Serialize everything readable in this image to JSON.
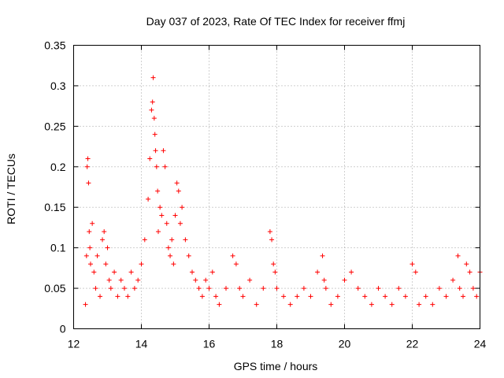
{
  "chart_data": {
    "type": "scatter",
    "title": "Day 037 of 2023, Rate Of TEC Index for receiver ffmj",
    "xlabel": "GPS time / hours",
    "ylabel": "ROTI / TECUs",
    "xlim": [
      12,
      24
    ],
    "ylim": [
      0,
      0.35
    ],
    "xticks": [
      12,
      14,
      16,
      18,
      20,
      22,
      24
    ],
    "xtick_labels": [
      "12",
      "14",
      "16",
      "18",
      "20",
      "22",
      "24"
    ],
    "yticks": [
      0,
      0.05,
      0.1,
      0.15,
      0.2,
      0.25,
      0.3,
      0.35
    ],
    "ytick_labels": [
      "0",
      "0.05",
      "0.1",
      "0.15",
      "0.2",
      "0.25",
      "0.3",
      "0.35"
    ],
    "grid": true,
    "marker": "+",
    "color": "#ff0000",
    "series": [
      {
        "name": "ROTI",
        "x": [
          12.35,
          12.38,
          12.4,
          12.42,
          12.44,
          12.46,
          12.48,
          12.5,
          12.55,
          12.6,
          12.65,
          12.7,
          12.78,
          12.85,
          12.9,
          12.95,
          13.0,
          13.05,
          13.1,
          13.2,
          13.3,
          13.4,
          13.5,
          13.6,
          13.7,
          13.8,
          13.9,
          14.0,
          14.1,
          14.2,
          14.25,
          14.3,
          14.33,
          14.35,
          14.38,
          14.4,
          14.42,
          14.45,
          14.48,
          14.5,
          14.55,
          14.6,
          14.65,
          14.7,
          14.75,
          14.8,
          14.85,
          14.9,
          14.95,
          15.0,
          15.05,
          15.1,
          15.15,
          15.2,
          15.3,
          15.4,
          15.5,
          15.6,
          15.7,
          15.8,
          15.9,
          16.0,
          16.1,
          16.2,
          16.3,
          16.5,
          16.7,
          16.8,
          16.9,
          17.0,
          17.2,
          17.4,
          17.6,
          17.8,
          17.85,
          17.9,
          17.95,
          18.0,
          18.2,
          18.4,
          18.6,
          18.8,
          19.0,
          19.2,
          19.35,
          19.4,
          19.45,
          19.6,
          19.8,
          20.0,
          20.2,
          20.4,
          20.6,
          20.8,
          21.0,
          21.2,
          21.4,
          21.6,
          21.8,
          22.0,
          22.1,
          22.2,
          22.4,
          22.6,
          22.8,
          23.0,
          23.2,
          23.35,
          23.4,
          23.5,
          23.6,
          23.7,
          23.8,
          23.9,
          24.0
        ],
        "y": [
          0.03,
          0.09,
          0.2,
          0.21,
          0.18,
          0.12,
          0.1,
          0.08,
          0.13,
          0.07,
          0.05,
          0.09,
          0.04,
          0.11,
          0.12,
          0.08,
          0.1,
          0.06,
          0.05,
          0.07,
          0.04,
          0.06,
          0.05,
          0.04,
          0.07,
          0.05,
          0.06,
          0.08,
          0.11,
          0.16,
          0.21,
          0.27,
          0.28,
          0.31,
          0.26,
          0.24,
          0.22,
          0.2,
          0.17,
          0.12,
          0.15,
          0.14,
          0.22,
          0.2,
          0.13,
          0.1,
          0.09,
          0.11,
          0.08,
          0.14,
          0.18,
          0.17,
          0.13,
          0.15,
          0.11,
          0.09,
          0.07,
          0.06,
          0.05,
          0.04,
          0.06,
          0.05,
          0.07,
          0.04,
          0.03,
          0.05,
          0.09,
          0.08,
          0.05,
          0.04,
          0.06,
          0.03,
          0.05,
          0.12,
          0.11,
          0.08,
          0.07,
          0.05,
          0.04,
          0.03,
          0.04,
          0.05,
          0.04,
          0.07,
          0.09,
          0.06,
          0.05,
          0.03,
          0.04,
          0.06,
          0.07,
          0.05,
          0.04,
          0.03,
          0.05,
          0.04,
          0.03,
          0.05,
          0.04,
          0.08,
          0.07,
          0.03,
          0.04,
          0.03,
          0.05,
          0.04,
          0.06,
          0.09,
          0.05,
          0.04,
          0.08,
          0.07,
          0.05,
          0.04,
          0.07
        ]
      }
    ]
  }
}
